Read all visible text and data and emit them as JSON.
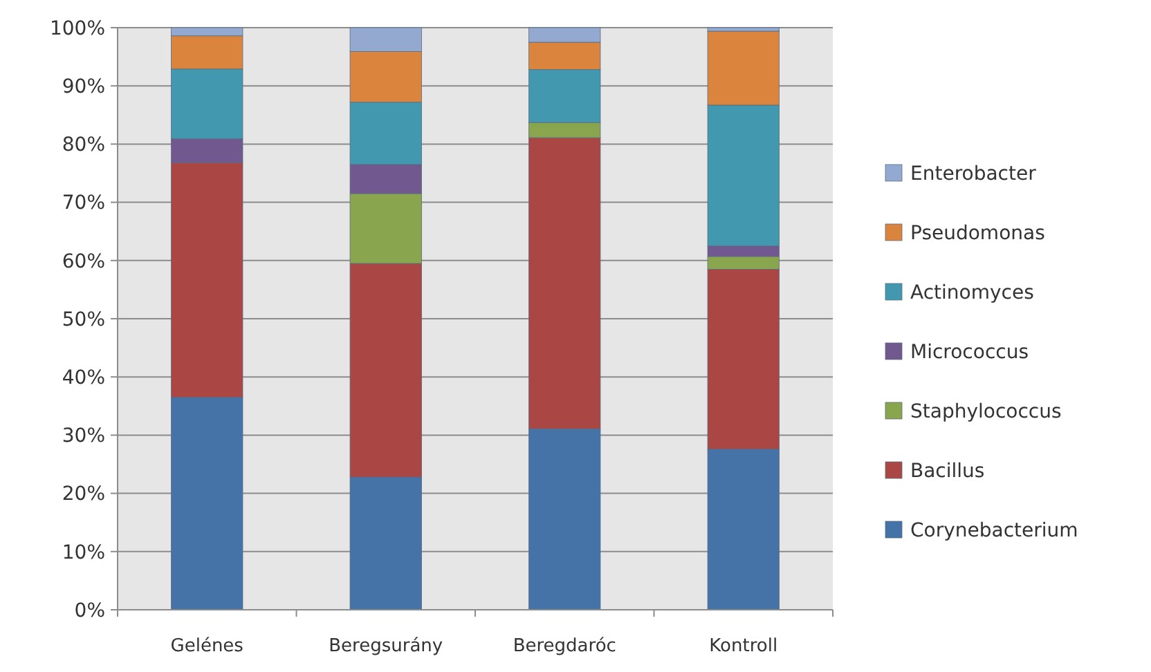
{
  "chart_data": {
    "type": "bar",
    "stacked": true,
    "categories": [
      "Gelénes",
      "Beregsurány",
      "Beregdaróc",
      "Kontroll"
    ],
    "series": [
      {
        "name": "Corynebacterium",
        "color": "#4572a7",
        "values": [
          36.5,
          22.8,
          31.1,
          27.6
        ]
      },
      {
        "name": "Bacillus",
        "color": "#aa4643",
        "values": [
          40.3,
          36.7,
          50.0,
          30.9
        ]
      },
      {
        "name": "Staphylococcus",
        "color": "#89a54e",
        "values": [
          0,
          12.0,
          2.6,
          2.2
        ]
      },
      {
        "name": "Micrococcus",
        "color": "#71588f",
        "values": [
          4.1,
          5.0,
          0,
          1.8
        ]
      },
      {
        "name": "Actinomyces",
        "color": "#4198af",
        "values": [
          12.0,
          10.7,
          9.1,
          24.2
        ]
      },
      {
        "name": "Pseudomonas",
        "color": "#db843d",
        "values": [
          5.7,
          8.7,
          4.7,
          12.7
        ]
      },
      {
        "name": "Enterobacter",
        "color": "#93a9cf",
        "values": [
          1.4,
          4.1,
          2.5,
          0.6
        ]
      }
    ],
    "ylim": [
      0,
      100
    ],
    "yticks": [
      {
        "value": 0,
        "label": "0%"
      },
      {
        "value": 10,
        "label": "10%"
      },
      {
        "value": 20,
        "label": "20%"
      },
      {
        "value": 30,
        "label": "30%"
      },
      {
        "value": 40,
        "label": "40%"
      },
      {
        "value": 50,
        "label": "50%"
      },
      {
        "value": 60,
        "label": "60%"
      },
      {
        "value": 70,
        "label": "70%"
      },
      {
        "value": 80,
        "label": "80%"
      },
      {
        "value": 90,
        "label": "90%"
      },
      {
        "value": 100,
        "label": "100%"
      }
    ],
    "grid": "y",
    "legend": "right"
  }
}
